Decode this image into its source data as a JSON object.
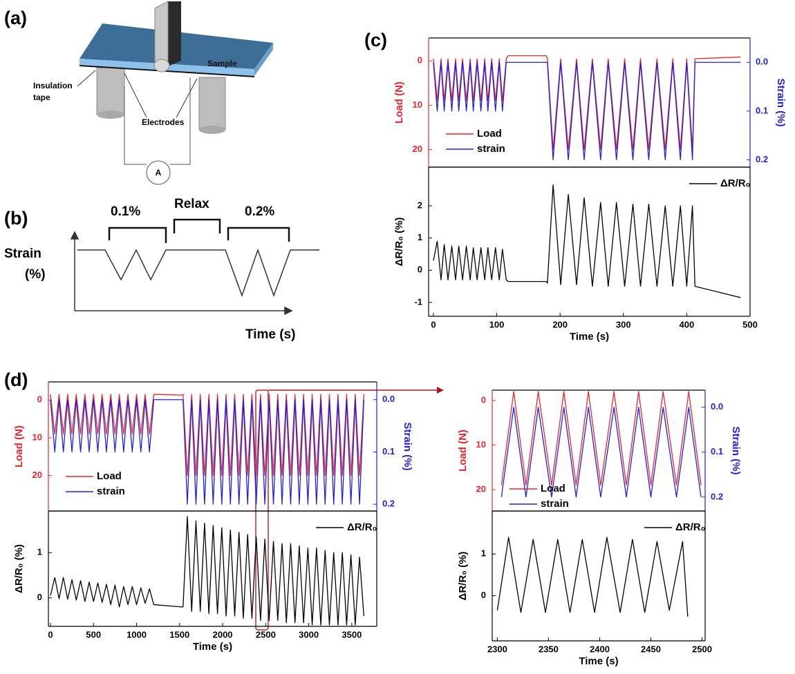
{
  "panel_labels": [
    "(a)",
    "(b)",
    "(c)",
    "(d)"
  ],
  "diagram_a": {
    "sample": "Sample",
    "insulation": [
      "Insulation",
      "tape"
    ],
    "electrodes": "Electrodes",
    "ammeter": "A"
  },
  "diagram_b": {
    "first_strain": "0.1%",
    "relax": "Relax",
    "second_strain": "0.2%",
    "y_label": [
      "Strain",
      "(%)"
    ],
    "x_label": "Time (s)"
  },
  "chart_data": [
    {
      "type": "line",
      "y_inverted": true,
      "legend": "lower left",
      "x": [
        0,
        6,
        12,
        17,
        23,
        29,
        35,
        40,
        46,
        52,
        58,
        63,
        69,
        75,
        81,
        86,
        92,
        98,
        104,
        109,
        115,
        118,
        178,
        180,
        189,
        201,
        213,
        226,
        238,
        251,
        264,
        276,
        289,
        302,
        315,
        327,
        340,
        353,
        366,
        378,
        390,
        400,
        409,
        413,
        485
      ],
      "xlim": [
        -7.6,
        500
      ],
      "ylim": [
        -5.2,
        24
      ],
      "yticks": [
        0,
        10,
        20
      ],
      "y_label": "Load (N)",
      "y2lim": [
        -0.05,
        0.215
      ],
      "y2ticks": [
        {
          "value": 0,
          "label": "0.0"
        },
        0.1,
        0.2
      ],
      "y2_label": "Strain (%)",
      "series": [
        {
          "name": "Load",
          "color": "#e8262b",
          "values": [
            -0.5,
            9,
            -0.5,
            9,
            -0.5,
            9,
            -0.5,
            9,
            -0.5,
            9,
            -0.5,
            9,
            -0.5,
            9,
            -0.5,
            9,
            -0.5,
            9,
            -0.5,
            9,
            -0.5,
            -1.2,
            -1.2,
            -0.5,
            20,
            -0.5,
            20,
            -0.5,
            20,
            -0.5,
            20,
            -0.5,
            20,
            -0.5,
            20,
            -0.5,
            20,
            -0.5,
            20,
            -0.5,
            20,
            -0.5,
            20,
            -0.5,
            -0.9
          ]
        },
        {
          "name": "strain",
          "color": "#1f1fe0",
          "axis": "y2",
          "values": [
            0,
            0.1,
            0,
            0.1,
            0,
            0.1,
            0,
            0.1,
            0,
            0.1,
            0,
            0.1,
            0,
            0.1,
            0,
            0.1,
            0,
            0.1,
            0,
            0.1,
            0,
            0,
            0,
            0,
            0.2,
            0,
            0.2,
            0,
            0.2,
            0,
            0.2,
            0,
            0.2,
            0,
            0.2,
            0,
            0.2,
            0,
            0.2,
            0,
            0.2,
            0,
            0.2,
            0,
            0
          ]
        }
      ]
    },
    {
      "type": "line",
      "legend": "upper right",
      "x": [
        0,
        6,
        12,
        17,
        23,
        29,
        35,
        40,
        46,
        52,
        58,
        63,
        69,
        75,
        81,
        86,
        92,
        98,
        104,
        109,
        115,
        118,
        178,
        180,
        189,
        201,
        213,
        226,
        238,
        251,
        264,
        276,
        289,
        302,
        315,
        327,
        340,
        353,
        366,
        378,
        390,
        400,
        409,
        413,
        485
      ],
      "xlim": [
        -7.6,
        500
      ],
      "xticks": [
        0,
        100,
        200,
        300,
        400,
        500
      ],
      "x_label": "Time (s)",
      "ylim": [
        -1.43,
        3.2
      ],
      "yticks": [
        -1,
        0,
        1,
        2
      ],
      "y_label": "ΔR/R₀ (%)",
      "series": [
        {
          "name": "ΔR/R₀",
          "color": "#000000",
          "values": [
            0.3,
            0.9,
            -0.3,
            0.8,
            -0.3,
            0.75,
            -0.3,
            0.75,
            -0.3,
            0.75,
            -0.3,
            0.7,
            -0.3,
            0.7,
            -0.3,
            0.7,
            -0.3,
            0.7,
            -0.3,
            0.65,
            -0.3,
            -0.35,
            -0.35,
            -0.4,
            2.65,
            -0.45,
            2.35,
            -0.45,
            2.25,
            -0.5,
            2.1,
            -0.5,
            2.1,
            -0.5,
            2.05,
            -0.5,
            2.05,
            -0.5,
            2.0,
            -0.5,
            2.0,
            -0.5,
            2.0,
            -0.5,
            -0.85
          ]
        }
      ]
    },
    {
      "type": "line",
      "y_inverted": true,
      "legend": "lower left",
      "x": [
        0,
        50,
        100,
        150,
        200,
        250,
        300,
        350,
        400,
        450,
        500,
        550,
        600,
        650,
        700,
        750,
        800,
        850,
        900,
        950,
        1000,
        1050,
        1100,
        1150,
        1200,
        1520,
        1540,
        1590,
        1640,
        1690,
        1740,
        1790,
        1840,
        1890,
        1940,
        1990,
        2040,
        2090,
        2140,
        2190,
        2240,
        2290,
        2340,
        2390,
        2440,
        2490,
        2540,
        2590,
        2640,
        2690,
        2740,
        2790,
        2840,
        2890,
        2940,
        2990,
        3040,
        3090,
        3140,
        3190,
        3240,
        3290,
        3340,
        3390,
        3440,
        3490,
        3540,
        3590,
        3640
      ],
      "xlim": [
        -24,
        3790
      ],
      "ylim": [
        -4.8,
        29.4
      ],
      "yticks": [
        0,
        10,
        20
      ],
      "y_label": "Load (N)",
      "y2lim": [
        -0.034,
        0.213
      ],
      "y2ticks": [
        {
          "value": 0,
          "label": "0.0"
        },
        0.1,
        0.2
      ],
      "y2_label": "Strain (%)",
      "series": [
        {
          "name": "Load",
          "color": "#e8262b",
          "values": [
            -1.5,
            9,
            -1.5,
            9,
            -1.5,
            9,
            -1.5,
            9,
            -1.5,
            9,
            -1.5,
            9,
            -1.5,
            9,
            -1.5,
            9,
            -1.5,
            9,
            -1.5,
            9,
            -1.5,
            9,
            -1.5,
            9,
            -1.5,
            -1.3,
            -1.5,
            20,
            -1.5,
            20,
            -1.5,
            20,
            -1.5,
            20,
            -1.5,
            20,
            -1.5,
            20,
            -1.5,
            20,
            -1.5,
            20,
            -1.5,
            20,
            -1.5,
            20,
            -1.5,
            20,
            -1.5,
            20,
            -1.5,
            20,
            -1.5,
            20,
            -1.5,
            20,
            -1.5,
            20,
            -1.5,
            20,
            -1.5,
            20,
            -1.5,
            20,
            -1.5,
            20,
            -1.5,
            20,
            -1.5
          ]
        },
        {
          "name": "strain",
          "color": "#1f1fe0",
          "axis": "y2",
          "values": [
            0,
            0.1,
            0,
            0.1,
            0,
            0.1,
            0,
            0.1,
            0,
            0.1,
            0,
            0.1,
            0,
            0.1,
            0,
            0.1,
            0,
            0.1,
            0,
            0.1,
            0,
            0.1,
            0,
            0.1,
            0,
            0,
            0,
            0.2,
            0,
            0.2,
            0,
            0.2,
            0,
            0.2,
            0,
            0.2,
            0,
            0.2,
            0,
            0.2,
            0,
            0.2,
            0,
            0.2,
            0,
            0.2,
            0,
            0.2,
            0,
            0.2,
            0,
            0.2,
            0,
            0.2,
            0,
            0.2,
            0,
            0.2,
            0,
            0.2,
            0,
            0.2,
            0,
            0.2,
            0,
            0.2,
            0,
            0.2,
            0
          ]
        }
      ]
    },
    {
      "type": "line",
      "legend": "upper right",
      "x": [
        0,
        50,
        100,
        150,
        200,
        250,
        300,
        350,
        400,
        450,
        500,
        550,
        600,
        650,
        700,
        750,
        800,
        850,
        900,
        950,
        1000,
        1050,
        1100,
        1150,
        1200,
        1520,
        1540,
        1590,
        1640,
        1690,
        1740,
        1790,
        1840,
        1890,
        1940,
        1990,
        2040,
        2090,
        2140,
        2190,
        2240,
        2290,
        2340,
        2390,
        2440,
        2490,
        2540,
        2590,
        2640,
        2690,
        2740,
        2790,
        2840,
        2890,
        2940,
        2990,
        3040,
        3090,
        3140,
        3190,
        3240,
        3290,
        3340,
        3390,
        3440,
        3490,
        3540,
        3590,
        3640
      ],
      "xlim": [
        -24,
        3790
      ],
      "xticks": [
        0,
        500,
        1000,
        1500,
        2000,
        2500,
        3000,
        3500
      ],
      "x_label": "Time (s)",
      "ylim": [
        -0.63,
        1.92
      ],
      "yticks": [
        0,
        1
      ],
      "y_label": "ΔR/R₀ (%)",
      "series": [
        {
          "name": "ΔR/R₀",
          "color": "#000000",
          "values": [
            0.05,
            0.45,
            -0.02,
            0.45,
            -0.03,
            0.4,
            -0.05,
            0.38,
            -0.08,
            0.35,
            -0.08,
            0.33,
            -0.1,
            0.3,
            -0.15,
            0.28,
            -0.2,
            0.25,
            -0.15,
            0.25,
            -0.15,
            0.22,
            -0.12,
            0.2,
            -0.15,
            -0.2,
            -0.2,
            1.8,
            -0.3,
            1.7,
            -0.3,
            1.65,
            -0.35,
            1.6,
            -0.35,
            1.55,
            -0.4,
            1.5,
            -0.4,
            1.45,
            -0.45,
            1.4,
            -0.45,
            1.35,
            -0.5,
            1.3,
            -0.5,
            1.25,
            -0.5,
            1.2,
            -0.55,
            1.2,
            -0.55,
            1.15,
            -0.55,
            1.1,
            -0.6,
            1.1,
            -0.6,
            1.05,
            -0.6,
            1.0,
            -0.6,
            1.0,
            -0.6,
            0.95,
            -0.6,
            0.9,
            -0.4
          ]
        }
      ]
    },
    {
      "type": "line",
      "y_inverted": true,
      "legend": "lower left",
      "x": [
        2304,
        2316,
        2328,
        2340,
        2353,
        2365,
        2377,
        2389,
        2401,
        2414,
        2426,
        2438,
        2450,
        2462,
        2475,
        2487,
        2499
      ],
      "xlim": [
        2295,
        2503
      ],
      "ylim": [
        -2.3,
        24.8
      ],
      "yticks": [
        0,
        10,
        20
      ],
      "y_label": "Load (N)",
      "y2lim": [
        -0.038,
        0.231
      ],
      "y2ticks": [
        {
          "value": 0,
          "label": "0.0"
        },
        0.1,
        0.2
      ],
      "y2_label": "Strain (%)",
      "series": [
        {
          "name": "Load",
          "color": "#e8262b",
          "values": [
            19,
            -2,
            19,
            -2,
            19,
            -2,
            19,
            -2,
            19,
            -2,
            19,
            -2,
            19,
            -2,
            19,
            -2,
            19
          ]
        },
        {
          "name": "strain",
          "color": "#1f1fe0",
          "axis": "y2",
          "values": [
            0.2,
            0,
            0.2,
            0,
            0.2,
            0,
            0.2,
            0,
            0.2,
            0,
            0.2,
            0,
            0.2,
            0,
            0.2,
            0,
            0.2
          ]
        }
      ]
    },
    {
      "type": "line",
      "legend": "upper right",
      "x": [
        2300,
        2311,
        2323,
        2335,
        2347,
        2359,
        2371,
        2383,
        2395,
        2407,
        2420,
        2432,
        2444,
        2456,
        2468,
        2481,
        2486
      ],
      "xlim": [
        2295,
        2503
      ],
      "xticks": [
        2300,
        2350,
        2400,
        2450,
        2500
      ],
      "x_label": "Time (s)",
      "ylim": [
        -1.08,
        2.03
      ],
      "yticks": [
        0,
        1
      ],
      "y_label": "ΔR/R₀ (%)",
      "series": [
        {
          "name": "ΔR/R₀",
          "color": "#000000",
          "values": [
            -0.35,
            1.4,
            -0.4,
            1.35,
            -0.4,
            1.35,
            -0.4,
            1.35,
            -0.4,
            1.4,
            -0.4,
            1.35,
            -0.4,
            1.3,
            -0.35,
            1.3,
            -0.5
          ]
        }
      ]
    }
  ]
}
